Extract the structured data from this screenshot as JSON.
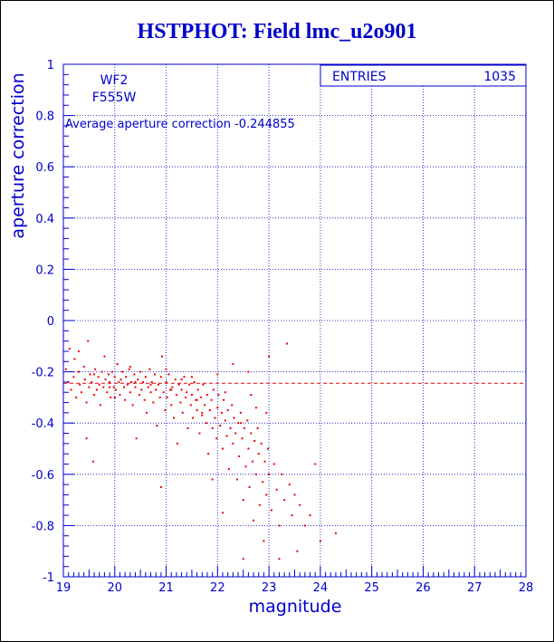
{
  "chart_data": {
    "type": "scatter",
    "title": "HSTPHOT: Field lmc_u2o901",
    "xlabel": "magnitude",
    "ylabel": "aperture correction",
    "xlim": [
      19,
      28
    ],
    "ylim": [
      -1,
      1
    ],
    "x_ticks": [
      "19",
      "20",
      "21",
      "22",
      "23",
      "24",
      "25",
      "26",
      "27",
      "28"
    ],
    "y_ticks": [
      "-1",
      "-0.8",
      "-0.6",
      "-0.4",
      "-0.2",
      "0",
      "0.2",
      "0.4",
      "0.6",
      "0.8",
      "1"
    ],
    "grid": true,
    "legend": "none",
    "labels": {
      "chip": "WF2",
      "filter": "F555W",
      "average": "Average aperture correction -0.244855"
    },
    "stats_box": {
      "label": "ENTRIES",
      "value": "1035"
    },
    "reference_line": {
      "y": -0.244855,
      "x_start": 19,
      "x_end": 28,
      "style": "dashed"
    },
    "series": [
      {
        "points": [
          [
            19.05,
            -0.19
          ],
          [
            19.1,
            -0.24
          ],
          [
            19.12,
            -0.11
          ],
          [
            19.15,
            -0.27
          ],
          [
            19.2,
            -0.22
          ],
          [
            19.22,
            -0.15
          ],
          [
            19.25,
            -0.3
          ],
          [
            19.3,
            -0.2
          ],
          [
            19.32,
            -0.25
          ],
          [
            19.35,
            -0.28
          ],
          [
            19.4,
            -0.18
          ],
          [
            19.42,
            -0.23
          ],
          [
            19.45,
            -0.32
          ],
          [
            19.48,
            -0.08
          ],
          [
            19.5,
            -0.26
          ],
          [
            19.52,
            -0.21
          ],
          [
            19.55,
            -0.24
          ],
          [
            19.58,
            -0.55
          ],
          [
            19.6,
            -0.29
          ],
          [
            19.62,
            -0.19
          ],
          [
            19.65,
            -0.27
          ],
          [
            19.68,
            -0.22
          ],
          [
            19.7,
            -0.25
          ],
          [
            19.72,
            -0.33
          ],
          [
            19.75,
            -0.2
          ],
          [
            19.78,
            -0.26
          ],
          [
            19.8,
            -0.14
          ],
          [
            19.82,
            -0.23
          ],
          [
            19.85,
            -0.28
          ],
          [
            19.88,
            -0.21
          ],
          [
            19.9,
            -0.24
          ],
          [
            19.92,
            -0.3
          ],
          [
            19.95,
            -0.2
          ],
          [
            19.98,
            -0.26
          ],
          [
            20.0,
            -0.22
          ],
          [
            20.02,
            -0.27
          ],
          [
            20.05,
            -0.17
          ],
          [
            20.08,
            -0.24
          ],
          [
            20.1,
            -0.29
          ],
          [
            20.12,
            -0.23
          ],
          [
            20.15,
            -0.2
          ],
          [
            20.18,
            -0.26
          ],
          [
            20.2,
            -0.31
          ],
          [
            20.22,
            -0.22
          ],
          [
            20.25,
            -0.25
          ],
          [
            20.28,
            -0.19
          ],
          [
            20.3,
            -0.28
          ],
          [
            20.32,
            -0.24
          ],
          [
            20.35,
            -0.33
          ],
          [
            20.38,
            -0.21
          ],
          [
            20.4,
            -0.26
          ],
          [
            20.42,
            -0.46
          ],
          [
            20.45,
            -0.23
          ],
          [
            20.48,
            -0.29
          ],
          [
            20.5,
            -0.2
          ],
          [
            20.52,
            -0.27
          ],
          [
            20.55,
            -0.24
          ],
          [
            20.58,
            -0.31
          ],
          [
            20.6,
            -0.22
          ],
          [
            20.62,
            -0.36
          ],
          [
            20.65,
            -0.26
          ],
          [
            20.68,
            -0.19
          ],
          [
            20.7,
            -0.28
          ],
          [
            20.72,
            -0.24
          ],
          [
            20.75,
            -0.32
          ],
          [
            20.78,
            -0.21
          ],
          [
            20.8,
            -0.27
          ],
          [
            20.82,
            -0.41
          ],
          [
            20.85,
            -0.25
          ],
          [
            20.88,
            -0.3
          ],
          [
            20.9,
            -0.22
          ],
          [
            20.92,
            -0.14
          ],
          [
            20.95,
            -0.28
          ],
          [
            20.98,
            -0.35
          ],
          [
            21.0,
            -0.24
          ],
          [
            21.02,
            -0.3
          ],
          [
            21.05,
            -0.21
          ],
          [
            21.08,
            -0.27
          ],
          [
            21.1,
            -0.33
          ],
          [
            21.12,
            -0.26
          ],
          [
            21.15,
            -0.38
          ],
          [
            21.18,
            -0.23
          ],
          [
            21.2,
            -0.29
          ],
          [
            21.22,
            -0.48
          ],
          [
            21.25,
            -0.25
          ],
          [
            21.28,
            -0.32
          ],
          [
            21.3,
            -0.27
          ],
          [
            21.32,
            -0.36
          ],
          [
            21.35,
            -0.22
          ],
          [
            21.38,
            -0.3
          ],
          [
            21.4,
            -0.28
          ],
          [
            21.42,
            -0.42
          ],
          [
            21.45,
            -0.25
          ],
          [
            21.48,
            -0.33
          ],
          [
            21.5,
            -0.29
          ],
          [
            21.52,
            -0.38
          ],
          [
            21.55,
            -0.24
          ],
          [
            21.58,
            -0.31
          ],
          [
            21.6,
            -0.35
          ],
          [
            21.62,
            -0.27
          ],
          [
            21.65,
            -0.44
          ],
          [
            21.68,
            -0.3
          ],
          [
            21.7,
            -0.37
          ],
          [
            21.72,
            -0.25
          ],
          [
            21.75,
            -0.33
          ],
          [
            21.78,
            -0.4
          ],
          [
            21.8,
            -0.29
          ],
          [
            21.82,
            -0.52
          ],
          [
            21.85,
            -0.35
          ],
          [
            21.88,
            -0.31
          ],
          [
            21.9,
            -0.42
          ],
          [
            21.92,
            -0.27
          ],
          [
            21.95,
            -0.38
          ],
          [
            21.98,
            -0.46
          ],
          [
            22.0,
            -0.34
          ],
          [
            22.02,
            -0.29
          ],
          [
            22.05,
            -0.41
          ],
          [
            22.08,
            -0.36
          ],
          [
            22.1,
            -0.5
          ],
          [
            22.12,
            -0.31
          ],
          [
            22.15,
            -0.39
          ],
          [
            22.18,
            -0.45
          ],
          [
            22.2,
            -0.35
          ],
          [
            22.22,
            -0.58
          ],
          [
            22.25,
            -0.42
          ],
          [
            22.28,
            -0.33
          ],
          [
            22.3,
            -0.48
          ],
          [
            22.32,
            -0.38
          ],
          [
            22.35,
            -0.44
          ],
          [
            22.38,
            -0.62
          ],
          [
            22.4,
            -0.4
          ],
          [
            22.42,
            -0.53
          ],
          [
            22.45,
            -0.36
          ],
          [
            22.48,
            -0.46
          ],
          [
            22.5,
            -0.7
          ],
          [
            22.52,
            -0.42
          ],
          [
            22.55,
            -0.57
          ],
          [
            22.58,
            -0.39
          ],
          [
            22.6,
            -0.5
          ],
          [
            22.62,
            -0.65
          ],
          [
            22.65,
            -0.44
          ],
          [
            22.68,
            -0.55
          ],
          [
            22.7,
            -0.78
          ],
          [
            22.72,
            -0.47
          ],
          [
            22.75,
            -0.6
          ],
          [
            22.78,
            -0.42
          ],
          [
            22.8,
            -0.52
          ],
          [
            22.82,
            -0.72
          ],
          [
            22.85,
            -0.48
          ],
          [
            22.88,
            -0.63
          ],
          [
            22.9,
            -0.86
          ],
          [
            22.92,
            -0.55
          ],
          [
            22.95,
            -0.68
          ],
          [
            22.98,
            -0.5
          ],
          [
            23.0,
            -0.6
          ],
          [
            23.05,
            -0.74
          ],
          [
            23.1,
            -0.56
          ],
          [
            23.15,
            -0.66
          ],
          [
            23.2,
            -0.8
          ],
          [
            23.25,
            -0.6
          ],
          [
            23.3,
            -0.7
          ],
          [
            23.35,
            -0.09
          ],
          [
            23.4,
            -0.64
          ],
          [
            23.45,
            -0.76
          ],
          [
            23.5,
            -0.68
          ],
          [
            23.55,
            -0.9
          ],
          [
            23.6,
            -0.72
          ],
          [
            23.7,
            -0.8
          ],
          [
            23.8,
            -0.76
          ],
          [
            23.9,
            -0.56
          ],
          [
            24.0,
            -0.86
          ],
          [
            24.3,
            -0.83
          ],
          [
            20.9,
            -0.65
          ],
          [
            21.5,
            -0.22
          ],
          [
            22.0,
            -0.21
          ],
          [
            22.6,
            -0.2
          ],
          [
            23.0,
            -0.14
          ],
          [
            22.3,
            -0.17
          ],
          [
            20.3,
            -0.18
          ],
          [
            19.3,
            -0.12
          ],
          [
            21.9,
            -0.62
          ],
          [
            22.1,
            -0.75
          ],
          [
            22.5,
            -0.93
          ],
          [
            23.2,
            -0.93
          ],
          [
            19.9,
            -0.26
          ],
          [
            20.7,
            -0.25
          ],
          [
            21.3,
            -0.23
          ],
          [
            21.6,
            -0.31
          ],
          [
            21.0,
            -0.19
          ],
          [
            20.0,
            -0.3
          ],
          [
            19.6,
            -0.21
          ],
          [
            20.4,
            -0.24
          ],
          [
            21.1,
            -0.27
          ],
          [
            21.7,
            -0.36
          ],
          [
            22.15,
            -0.28
          ],
          [
            22.45,
            -0.4
          ],
          [
            22.75,
            -0.34
          ],
          [
            19.45,
            -0.46
          ],
          [
            22.95,
            -0.36
          ],
          [
            22.65,
            -0.29
          ]
        ]
      }
    ]
  }
}
